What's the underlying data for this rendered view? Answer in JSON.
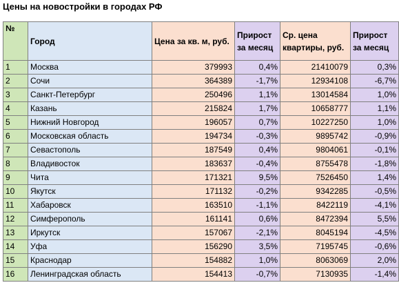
{
  "title": "Цены на новостройки в городах РФ",
  "headers": {
    "num": "№",
    "city": "Город",
    "price_sqm": "Цена за кв. м, руб.",
    "growth1": "Прирост за месяц",
    "avg_price": "Ср. цена квартиры, руб.",
    "growth2": "Прирост за месяц"
  },
  "rows": [
    {
      "num": "1",
      "city": "Москва",
      "price_sqm": "379993",
      "growth1": "0,4%",
      "avg_price": "21410079",
      "growth2": "0,3%"
    },
    {
      "num": "2",
      "city": "Сочи",
      "price_sqm": "364389",
      "growth1": "-1,7%",
      "avg_price": "12934108",
      "growth2": "-6,7%"
    },
    {
      "num": "3",
      "city": "Санкт-Петербург",
      "price_sqm": "250496",
      "growth1": "1,1%",
      "avg_price": "13014584",
      "growth2": "1,0%"
    },
    {
      "num": "4",
      "city": "Казань",
      "price_sqm": "215824",
      "growth1": "1,7%",
      "avg_price": "10658777",
      "growth2": "1,1%"
    },
    {
      "num": "5",
      "city": "Нижний Новгород",
      "price_sqm": "196057",
      "growth1": "0,7%",
      "avg_price": "10227250",
      "growth2": "1,0%"
    },
    {
      "num": "6",
      "city": "Московская область",
      "price_sqm": "194734",
      "growth1": "-0,3%",
      "avg_price": "9895742",
      "growth2": "-0,9%"
    },
    {
      "num": "7",
      "city": "Севастополь",
      "price_sqm": "187549",
      "growth1": "0,4%",
      "avg_price": "9804061",
      "growth2": "-0,1%"
    },
    {
      "num": "8",
      "city": "Владивосток",
      "price_sqm": "183637",
      "growth1": "-0,4%",
      "avg_price": "8755478",
      "growth2": "-1,8%"
    },
    {
      "num": "9",
      "city": "Чита",
      "price_sqm": "171321",
      "growth1": "9,5%",
      "avg_price": "7526450",
      "growth2": "1,4%"
    },
    {
      "num": "10",
      "city": "Якутск",
      "price_sqm": "171132",
      "growth1": "-0,2%",
      "avg_price": "9342285",
      "growth2": "-0,5%"
    },
    {
      "num": "11",
      "city": "Хабаровск",
      "price_sqm": "163510",
      "growth1": "-1,1%",
      "avg_price": "8422119",
      "growth2": "-4,1%"
    },
    {
      "num": "12",
      "city": "Симферополь",
      "price_sqm": "161141",
      "growth1": "0,6%",
      "avg_price": "8472394",
      "growth2": "5,5%"
    },
    {
      "num": "13",
      "city": "Иркутск",
      "price_sqm": "157067",
      "growth1": "-2,1%",
      "avg_price": "8045194",
      "growth2": "-4,5%"
    },
    {
      "num": "14",
      "city": "Уфа",
      "price_sqm": "156290",
      "growth1": "3,5%",
      "avg_price": "7195745",
      "growth2": "-0,6%"
    },
    {
      "num": "15",
      "city": "Краснодар",
      "price_sqm": "154882",
      "growth1": "1,0%",
      "avg_price": "8063069",
      "growth2": "2,0%"
    },
    {
      "num": "16",
      "city": "Ленинградская область",
      "price_sqm": "154413",
      "growth1": "-0,7%",
      "avg_price": "7130935",
      "growth2": "-1,4%"
    }
  ]
}
